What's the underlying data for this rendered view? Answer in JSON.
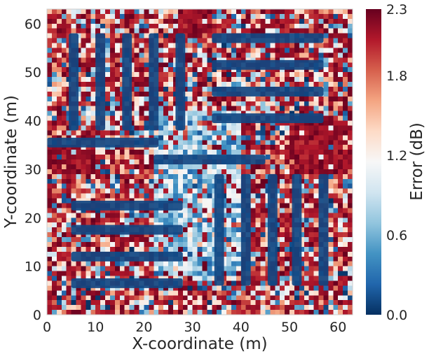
{
  "chart_data": {
    "type": "heatmap",
    "title": "",
    "xlabel": "X-coordinate (m)",
    "ylabel": "Y-coordinate (m)",
    "xlim": [
      0,
      63
    ],
    "ylim": [
      0,
      63
    ],
    "xticks": [
      0,
      10,
      20,
      30,
      40,
      50,
      60
    ],
    "yticks": [
      0,
      10,
      20,
      30,
      40,
      50,
      60
    ],
    "grid": false,
    "colorbar": {
      "label": "Error (dB)",
      "colormap": "RdBu_r",
      "range": [
        0.0,
        2.3
      ],
      "ticks": [
        {
          "value": 0.0,
          "label": "0.0"
        },
        {
          "value": 0.6,
          "label": "0.6"
        },
        {
          "value": 1.2,
          "label": "1.2"
        },
        {
          "value": 1.8,
          "label": "1.8"
        },
        {
          "value": 2.3,
          "label": "2.3"
        }
      ]
    },
    "background_error_dB": "noisy, mostly 1.5-2.3",
    "low_error_regions": [
      {
        "orientation": "vertical",
        "x": [
          4.5,
          6.5
        ],
        "y": [
          38,
          58
        ],
        "error_dB": 0.1
      },
      {
        "orientation": "vertical",
        "x": [
          10,
          12
        ],
        "y": [
          38,
          58
        ],
        "error_dB": 0.1
      },
      {
        "orientation": "vertical",
        "x": [
          15.5,
          17.5
        ],
        "y": [
          38,
          58
        ],
        "error_dB": 0.1
      },
      {
        "orientation": "vertical",
        "x": [
          21,
          23
        ],
        "y": [
          38,
          58
        ],
        "error_dB": 0.1
      },
      {
        "orientation": "vertical",
        "x": [
          26.5,
          28.5
        ],
        "y": [
          38,
          58
        ],
        "error_dB": 0.1
      },
      {
        "orientation": "horizontal",
        "x": [
          34,
          57
        ],
        "y": [
          56,
          58
        ],
        "error_dB": 0.1
      },
      {
        "orientation": "horizontal",
        "x": [
          34,
          57
        ],
        "y": [
          50.5,
          52.5
        ],
        "error_dB": 0.1
      },
      {
        "orientation": "horizontal",
        "x": [
          34,
          57
        ],
        "y": [
          45,
          47
        ],
        "error_dB": 0.1
      },
      {
        "orientation": "horizontal",
        "x": [
          34,
          57
        ],
        "y": [
          39.5,
          41.5
        ],
        "error_dB": 0.1
      },
      {
        "orientation": "horizontal",
        "x": [
          0,
          23
        ],
        "y": [
          34.5,
          36.5
        ],
        "error_dB": 0.1
      },
      {
        "orientation": "horizontal",
        "x": [
          22,
          45
        ],
        "y": [
          31,
          33
        ],
        "error_dB": 0.1
      },
      {
        "orientation": "horizontal",
        "x": [
          5,
          28
        ],
        "y": [
          21.5,
          23.5
        ],
        "error_dB": 0.1
      },
      {
        "orientation": "horizontal",
        "x": [
          5,
          28
        ],
        "y": [
          16.5,
          18.5
        ],
        "error_dB": 0.1
      },
      {
        "orientation": "horizontal",
        "x": [
          5,
          28
        ],
        "y": [
          11,
          13
        ],
        "error_dB": 0.1
      },
      {
        "orientation": "horizontal",
        "x": [
          5,
          28
        ],
        "y": [
          5.5,
          7.5
        ],
        "error_dB": 0.1
      },
      {
        "orientation": "vertical",
        "x": [
          34.5,
          36.5
        ],
        "y": [
          6,
          29
        ],
        "error_dB": 0.1
      },
      {
        "orientation": "vertical",
        "x": [
          40,
          42
        ],
        "y": [
          6,
          29
        ],
        "error_dB": 0.1
      },
      {
        "orientation": "vertical",
        "x": [
          45.5,
          47.5
        ],
        "y": [
          6,
          29
        ],
        "error_dB": 0.1
      },
      {
        "orientation": "vertical",
        "x": [
          50.5,
          52.5
        ],
        "y": [
          6,
          29
        ],
        "error_dB": 0.1
      },
      {
        "orientation": "vertical",
        "x": [
          56,
          58
        ],
        "y": [
          6,
          29
        ],
        "error_dB": 0.1
      }
    ],
    "transition_region": {
      "x": [
        22,
        40
      ],
      "y": [
        8,
        42
      ],
      "error_dB": "0.5-1.2"
    },
    "high_error_regions": [
      {
        "x": [
          27,
          34
        ],
        "y": [
          56,
          63
        ],
        "error_dB": 2.2
      },
      {
        "x": [
          0,
          10
        ],
        "y": [
          29,
          35
        ],
        "error_dB": 2.2
      },
      {
        "x": [
          50,
          63
        ],
        "y": [
          29,
          40
        ],
        "error_dB": 2.3
      }
    ]
  }
}
